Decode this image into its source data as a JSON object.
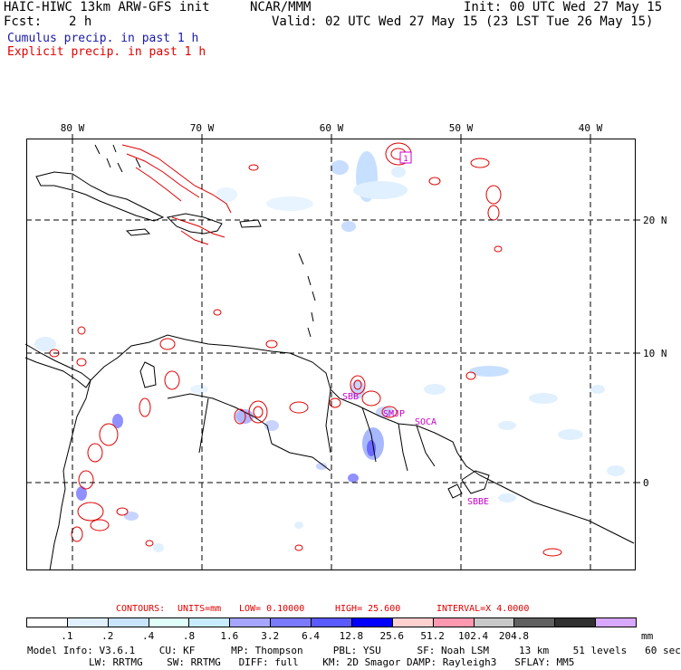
{
  "header": {
    "title": "HAIC-HIWC 13km ARW-GFS init",
    "agency": "NCAR/MMM",
    "init": "Init: 00 UTC Wed 27 May 15",
    "fcst_label": "Fcst:",
    "fcst_value": "2 h",
    "valid": "Valid: 02 UTC Wed 27 May 15 (23 LST Tue 26 May 15)",
    "legend_cumulus": "Cumulus precip. in past 1 h",
    "legend_explicit": "Explicit precip. in past 1 h"
  },
  "colors": {
    "cumulus": "#0000cc",
    "explicit": "#e00000",
    "annotation": "#cc00cc"
  },
  "map": {
    "lon_labels": [
      "80 W",
      "70 W",
      "60 W",
      "50 W",
      "40 W"
    ],
    "lat_labels": [
      "20 N",
      "10 N",
      "0"
    ],
    "stations": [
      "SBB",
      "SMJP",
      "SOCA",
      "SBBE"
    ],
    "marker": "1"
  },
  "contours": {
    "label": "CONTOURS:",
    "units": "UNITS=mm",
    "low": "LOW= 0.10000",
    "high": "HIGH= 25.600",
    "interval": "INTERVAL=X 4.0000"
  },
  "colorbar": {
    "colors": [
      "#ffffff",
      "#e0f0ff",
      "#c8e4ff",
      "#e0fff8",
      "#c8ecff",
      "#a6a6ff",
      "#7a7aff",
      "#5a5aff",
      "#0000ff",
      "#ffd0d0",
      "#ff98b0",
      "#c8c8c8",
      "#606060",
      "#303030",
      "#d8a8ff"
    ],
    "ticks": [
      ".1",
      ".2",
      ".4",
      ".8",
      "1.6",
      "3.2",
      "6.4",
      "12.8",
      "25.6",
      "51.2",
      "102.4",
      "204.8"
    ],
    "unit": "mm"
  },
  "model_info": {
    "line1": "Model Info: V3.6.1    CU: KF      MP: Thompson     PBL: YSU      SF: Noah LSM     13 km    51 levels   60 sec",
    "line2": "LW: RRTMG    SW: RRTMG   DIFF: full    KM: 2D Smagor DAMP: Rayleigh3   SFLAY: MM5"
  }
}
